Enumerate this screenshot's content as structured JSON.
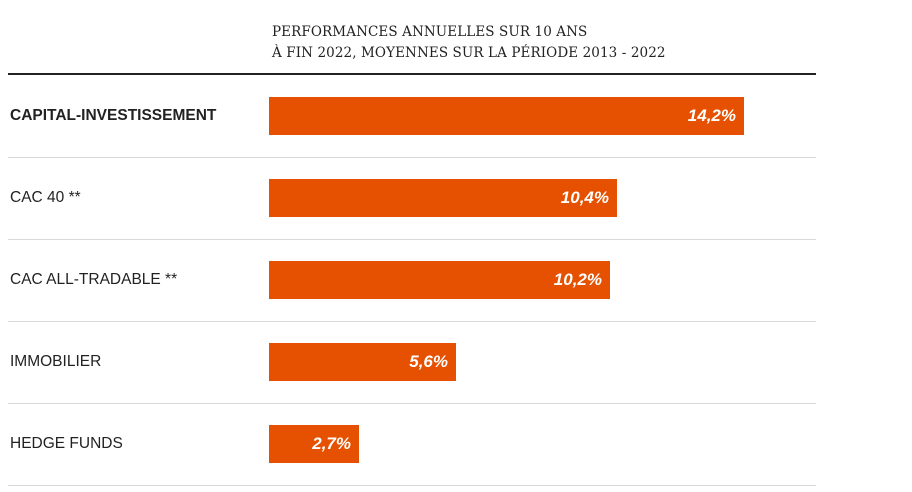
{
  "chart_data": {
    "type": "bar",
    "orientation": "horizontal",
    "title": "PERFORMANCES ANNUELLES SUR 10 ANS",
    "subtitle": "À FIN 2022, MOYENNES SUR LA PÉRIODE 2013 - 2022",
    "categories": [
      "CAPITAL-INVESTISSEMENT",
      "CAC 40 **",
      "CAC ALL-TRADABLE **",
      "IMMOBILIER",
      "HEDGE FUNDS"
    ],
    "values": [
      14.2,
      10.4,
      10.2,
      5.6,
      2.7
    ],
    "value_labels": [
      "14,2%",
      "10,4%",
      "10,2%",
      "5,6%",
      "2,7%"
    ],
    "highlight_index": 0,
    "xlim": [
      0,
      14.2
    ],
    "bar_color": "#e55100",
    "xlabel": "",
    "ylabel": ""
  }
}
